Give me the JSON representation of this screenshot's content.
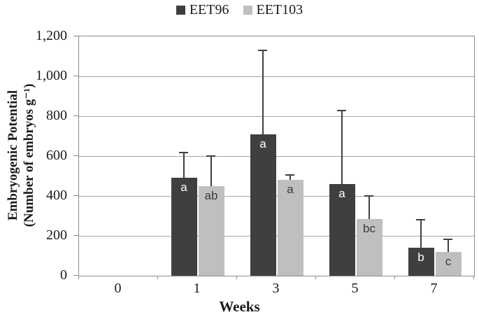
{
  "figure_title": "",
  "chart_data": {
    "type": "bar",
    "title": "",
    "xlabel": "Weeks",
    "ylabel_line1": "Embryogenic Potential",
    "ylabel_line2": "(Number of embryos g⁻¹)",
    "categories": [
      "0",
      "1",
      "3",
      "5",
      "7"
    ],
    "y_ticks": [
      {
        "label": "0",
        "value": 0
      },
      {
        "label": "200",
        "value": 200
      },
      {
        "label": "400",
        "value": 400
      },
      {
        "label": "600",
        "value": 600
      },
      {
        "label": "800",
        "value": 800
      },
      {
        "label": "1,000",
        "value": 1000
      },
      {
        "label": "1,200",
        "value": 1200
      }
    ],
    "ylim": [
      0,
      1200
    ],
    "grid": true,
    "legend_position": "top-center",
    "series": [
      {
        "name": "EET96",
        "color": "#3f3f41",
        "letter_color": "#ffffff",
        "values": [
          0,
          490,
          710,
          460,
          140
        ],
        "error_top": [
          null,
          620,
          1135,
          830,
          285
        ],
        "letters": [
          "",
          "a",
          "a",
          "a",
          "b"
        ]
      },
      {
        "name": "EET103",
        "color": "#bfbfbf",
        "letter_color": "#3a3a3a",
        "values": [
          0,
          450,
          480,
          285,
          120
        ],
        "error_top": [
          null,
          605,
          510,
          405,
          185
        ],
        "letters": [
          "",
          "ab",
          "a",
          "bc",
          "c"
        ]
      }
    ]
  }
}
